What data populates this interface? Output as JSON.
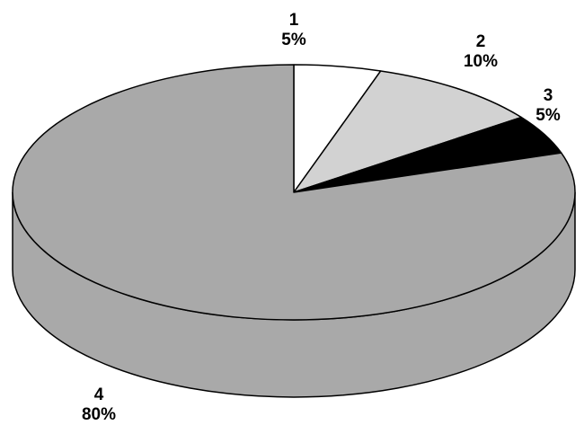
{
  "chart_data": {
    "type": "pie",
    "style": "3d",
    "start": "12 o'clock, clockwise",
    "slices": [
      {
        "label": "1",
        "value": 5,
        "value_label": "5%",
        "color": "#ffffff"
      },
      {
        "label": "2",
        "value": 10,
        "value_label": "10%",
        "color": "#d2d2d2"
      },
      {
        "label": "3",
        "value": 5,
        "value_label": "5%",
        "color": "#000000"
      },
      {
        "label": "4",
        "value": 80,
        "value_label": "80%",
        "color": "#a9a9a9"
      }
    ],
    "side_color": "#a9a9a9"
  }
}
